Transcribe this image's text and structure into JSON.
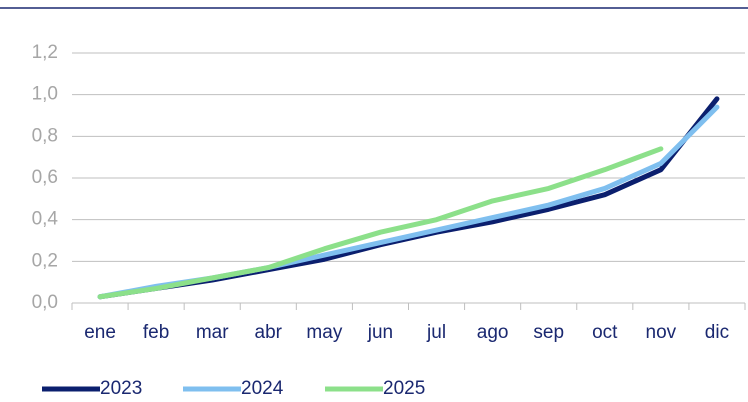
{
  "chart_data": {
    "type": "line",
    "categories": [
      "ene",
      "feb",
      "mar",
      "abr",
      "may",
      "jun",
      "jul",
      "ago",
      "sep",
      "oct",
      "nov",
      "dic"
    ],
    "series": [
      {
        "name": "2023",
        "color": "#0b1f6e",
        "values": [
          0.03,
          0.07,
          0.11,
          0.16,
          0.21,
          0.28,
          0.34,
          0.39,
          0.45,
          0.52,
          0.64,
          0.98
        ]
      },
      {
        "name": "2024",
        "color": "#7fbfef",
        "values": [
          0.03,
          0.08,
          0.12,
          0.17,
          0.23,
          0.29,
          0.35,
          0.41,
          0.47,
          0.55,
          0.67,
          0.94
        ]
      },
      {
        "name": "2025",
        "color": "#8ce08a",
        "values": [
          0.03,
          0.07,
          0.12,
          0.17,
          0.26,
          0.34,
          0.4,
          0.49,
          0.55,
          0.64,
          0.74,
          null
        ]
      }
    ],
    "ylim": [
      0,
      1.2
    ],
    "yticks": [
      {
        "value": 0,
        "label": "0,0"
      },
      {
        "value": 0.2,
        "label": "0,2"
      },
      {
        "value": 0.4,
        "label": "0,4"
      },
      {
        "value": 0.6,
        "label": "0,6"
      },
      {
        "value": 0.8,
        "label": "0,8"
      },
      {
        "value": 1.0,
        "label": "1,0"
      },
      {
        "value": 1.2,
        "label": "1,2"
      }
    ],
    "grid": true,
    "legend": "bottom"
  }
}
